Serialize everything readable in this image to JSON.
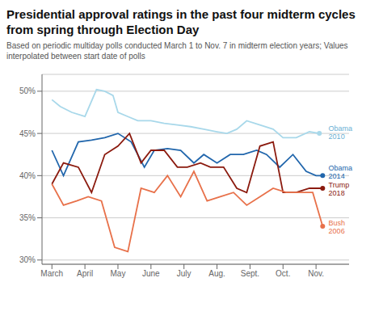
{
  "chart_data": {
    "type": "line",
    "title": "Presidential approval ratings in the past four midterm cycles from spring through Election Day",
    "subtitle": "Based on periodic multiday polls conducted March 1 to Nov. 7 in midterm election years; Values interpolated between start date of polls",
    "xlim": [
      -0.3,
      9.0
    ],
    "xticks": [
      {
        "value": 0,
        "label": "March"
      },
      {
        "value": 1,
        "label": "April"
      },
      {
        "value": 2,
        "label": "May"
      },
      {
        "value": 3,
        "label": "June"
      },
      {
        "value": 4,
        "label": "July"
      },
      {
        "value": 5,
        "label": "Aug."
      },
      {
        "value": 6,
        "label": "Sept."
      },
      {
        "value": 7,
        "label": "Oct."
      },
      {
        "value": 8,
        "label": "Nov."
      }
    ],
    "ylim": [
      29.5,
      52
    ],
    "yticks": [
      {
        "value": 30,
        "label": "30%"
      },
      {
        "value": 35,
        "label": "35%"
      },
      {
        "value": 40,
        "label": "40%"
      },
      {
        "value": 45,
        "label": "45%"
      },
      {
        "value": 50,
        "label": "50%"
      }
    ],
    "grid": "y",
    "series": [
      {
        "name": "Obama 2010",
        "color": "#a8d8ea",
        "x": [
          0,
          0.25,
          0.6,
          1.0,
          1.35,
          1.6,
          1.85,
          2.0,
          2.3,
          2.6,
          3.0,
          3.4,
          3.8,
          4.2,
          4.6,
          5.0,
          5.3,
          5.6,
          5.9,
          6.3,
          6.7,
          7.0,
          7.4,
          7.8,
          8.1
        ],
        "values": [
          49.0,
          48.2,
          47.5,
          47.0,
          50.2,
          50.0,
          49.5,
          47.5,
          47.0,
          46.5,
          46.5,
          46.2,
          46.0,
          45.8,
          45.5,
          45.2,
          45.0,
          45.5,
          46.5,
          46.0,
          45.5,
          44.5,
          44.5,
          45.2,
          45.0
        ]
      },
      {
        "name": "Obama 2014",
        "color": "#2166ac",
        "x": [
          0,
          0.35,
          0.8,
          1.2,
          1.6,
          2.0,
          2.4,
          2.8,
          3.1,
          3.5,
          3.9,
          4.3,
          4.6,
          5.0,
          5.4,
          5.8,
          6.2,
          6.5,
          6.9,
          7.3,
          7.7,
          8.0,
          8.2
        ],
        "values": [
          43.0,
          40.0,
          44.0,
          44.2,
          44.5,
          45.0,
          44.0,
          41.0,
          43.0,
          43.2,
          43.0,
          41.5,
          42.5,
          41.5,
          42.5,
          42.5,
          43.0,
          42.5,
          41.0,
          42.5,
          40.5,
          40.0,
          40.0
        ]
      },
      {
        "name": "Trump 2018",
        "color": "#8b1a0e",
        "x": [
          0,
          0.35,
          0.8,
          1.2,
          1.6,
          2.0,
          2.35,
          2.7,
          3.0,
          3.4,
          3.8,
          4.1,
          4.5,
          4.8,
          5.2,
          5.6,
          5.9,
          6.3,
          6.7,
          7.0,
          7.4,
          7.8,
          8.2
        ],
        "values": [
          39.0,
          41.5,
          41.0,
          38.0,
          42.5,
          43.5,
          45.0,
          41.5,
          43.0,
          43.0,
          41.0,
          41.0,
          41.5,
          41.0,
          41.0,
          38.5,
          38.0,
          43.5,
          44.0,
          38.0,
          38.0,
          38.5,
          38.5
        ]
      },
      {
        "name": "Bush 2006",
        "color": "#e8714a",
        "x": [
          0,
          0.35,
          0.75,
          1.1,
          1.5,
          1.9,
          2.3,
          2.7,
          3.1,
          3.5,
          3.9,
          4.3,
          4.7,
          5.1,
          5.5,
          5.9,
          6.3,
          6.7,
          7.1,
          7.5,
          7.9,
          8.2
        ],
        "values": [
          39.0,
          36.5,
          37.0,
          37.5,
          37.0,
          31.5,
          31.0,
          38.5,
          38.0,
          40.0,
          37.5,
          40.5,
          37.0,
          37.5,
          38.0,
          36.5,
          37.5,
          38.5,
          38.0,
          38.0,
          38.0,
          34.0
        ]
      }
    ],
    "annotations": [
      {
        "text": "Obama 2010",
        "x": 8.33,
        "y": 45.2,
        "color": "#6ab0d4"
      },
      {
        "text": "Obama 2014",
        "x": 8.33,
        "y": 40.5,
        "color": "#2166ac"
      },
      {
        "text": "Trump 2018",
        "x": 8.33,
        "y": 38.5,
        "color": "#8b1a0e"
      },
      {
        "text": "Bush 2006",
        "x": 8.33,
        "y": 34.0,
        "color": "#e8714a"
      }
    ]
  }
}
